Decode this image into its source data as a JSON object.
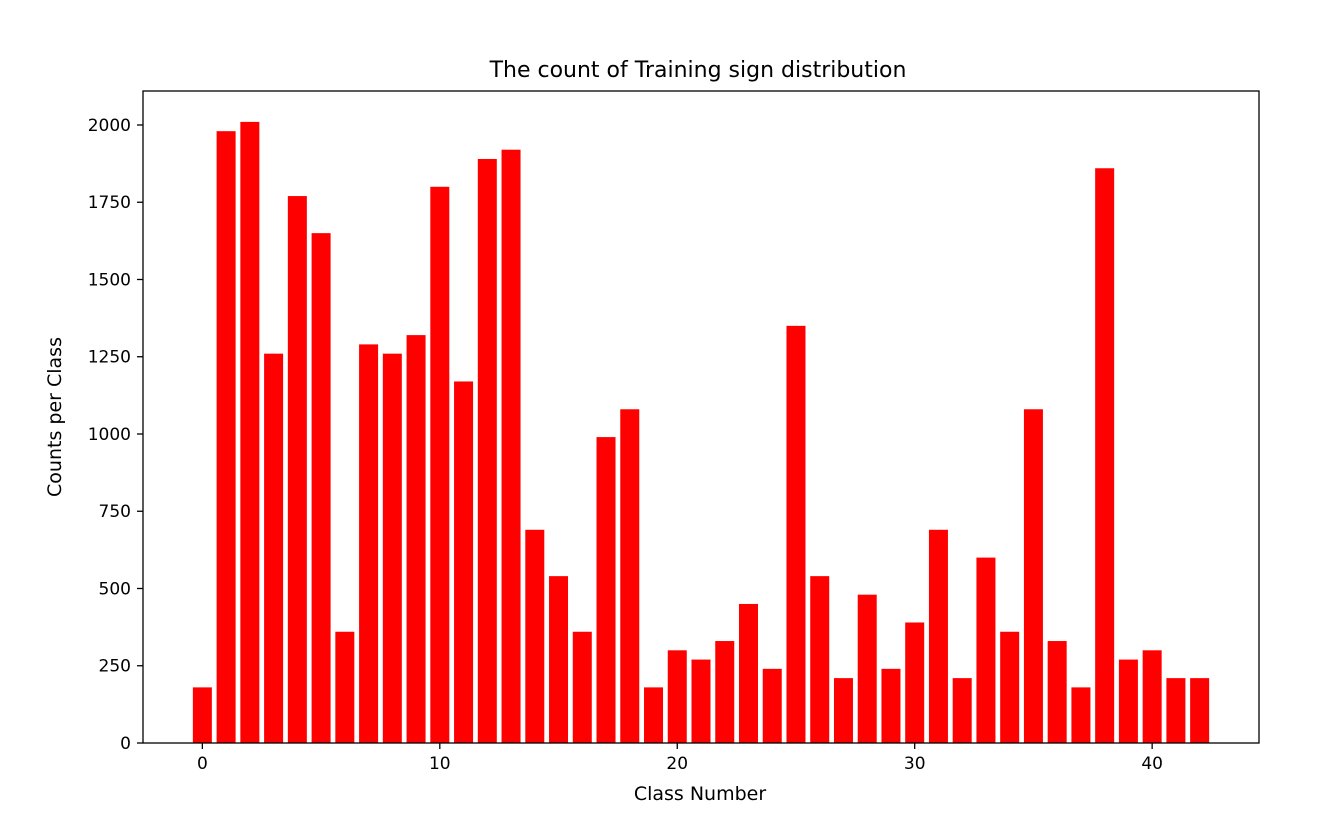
{
  "chart_data": {
    "type": "bar",
    "title": "The count of Training sign distribution",
    "xlabel": "Class Number",
    "ylabel": "Counts per Class",
    "bar_color": "#ff0000",
    "x": [
      0,
      1,
      2,
      3,
      4,
      5,
      6,
      7,
      8,
      9,
      10,
      11,
      12,
      13,
      14,
      15,
      16,
      17,
      18,
      19,
      20,
      21,
      22,
      23,
      24,
      25,
      26,
      27,
      28,
      29,
      30,
      31,
      32,
      33,
      34,
      35,
      36,
      37,
      38,
      39,
      40,
      41,
      42
    ],
    "values": [
      180,
      1980,
      2010,
      1260,
      1770,
      1650,
      360,
      1290,
      1260,
      1320,
      1800,
      1170,
      1890,
      1920,
      690,
      540,
      360,
      990,
      1080,
      180,
      300,
      270,
      330,
      450,
      240,
      1350,
      540,
      210,
      480,
      240,
      390,
      690,
      210,
      600,
      360,
      1080,
      330,
      180,
      1860,
      270,
      300,
      210,
      210
    ],
    "xlim": [
      -2.5,
      44.5
    ],
    "ylim": [
      0,
      2110
    ],
    "xticks": [
      0,
      10,
      20,
      30,
      40
    ],
    "xtick_labels": [
      "0",
      "10",
      "20",
      "30",
      "40"
    ],
    "yticks": [
      0,
      250,
      500,
      750,
      1000,
      1250,
      1500,
      1750,
      2000
    ],
    "ytick_labels": [
      "0",
      "250",
      "500",
      "750",
      "1000",
      "1250",
      "1500",
      "1750",
      "2000"
    ],
    "grid": false,
    "legend": "none"
  }
}
